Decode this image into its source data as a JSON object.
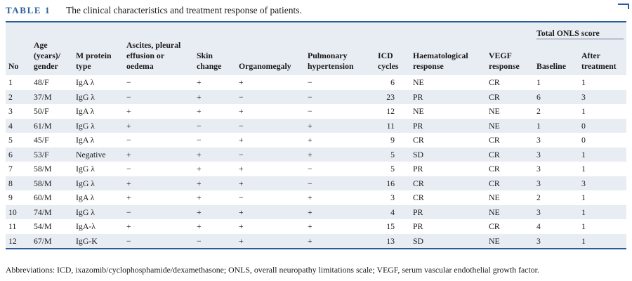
{
  "caption": {
    "label": "TABLE 1",
    "title": "The clinical characteristics and treatment response of patients."
  },
  "header": {
    "no": "No",
    "age_gender": "Age (years)/ gender",
    "m_protein": "M protein type",
    "ascites": "Ascites, pleural effusion or oedema",
    "skin": "Skin change",
    "organomegaly": "Organomegaly",
    "pulmonary": "Pulmonary hypertension",
    "icd": "ICD cycles",
    "haem": "Haematological response",
    "vegf": "VEGF response",
    "onls_group": "Total ONLS score",
    "baseline": "Baseline",
    "after": "After treatment"
  },
  "rows": [
    [
      "1",
      "48/F",
      "IgA λ",
      "−",
      "+",
      "+",
      "−",
      "6",
      "NE",
      "CR",
      "1",
      "1"
    ],
    [
      "2",
      "37/M",
      "IgG λ",
      "−",
      "+",
      "−",
      "−",
      "23",
      "PR",
      "CR",
      "6",
      "3"
    ],
    [
      "3",
      "50/F",
      "IgA λ",
      "+",
      "+",
      "+",
      "−",
      "12",
      "NE",
      "NE",
      "2",
      "1"
    ],
    [
      "4",
      "61/M",
      "IgG λ",
      "+",
      "−",
      "−",
      "+",
      "11",
      "PR",
      "NE",
      "1",
      "0"
    ],
    [
      "5",
      "45/F",
      "IgA λ",
      "−",
      "−",
      "+",
      "+",
      "9",
      "CR",
      "CR",
      "3",
      "0"
    ],
    [
      "6",
      "53/F",
      "Negative",
      "+",
      "+",
      "−",
      "+",
      "5",
      "SD",
      "CR",
      "3",
      "1"
    ],
    [
      "7",
      "58/M",
      "IgG λ",
      "−",
      "+",
      "+",
      "−",
      "5",
      "PR",
      "CR",
      "3",
      "1"
    ],
    [
      "8",
      "58/M",
      "IgG λ",
      "+",
      "+",
      "+",
      "−",
      "16",
      "CR",
      "CR",
      "3",
      "3"
    ],
    [
      "9",
      "60/M",
      "IgA λ",
      "+",
      "+",
      "−",
      "+",
      "3",
      "CR",
      "NE",
      "2",
      "1"
    ],
    [
      "10",
      "74/M",
      "IgG λ",
      "−",
      "+",
      "+",
      "+",
      "4",
      "PR",
      "NE",
      "3",
      "1"
    ],
    [
      "11",
      "54/M",
      "IgA-λ",
      "+",
      "+",
      "+",
      "+",
      "15",
      "PR",
      "CR",
      "4",
      "1"
    ],
    [
      "12",
      "67/M",
      "IgG-K",
      "−",
      "−",
      "+",
      "+",
      "13",
      "SD",
      "NE",
      "3",
      "1"
    ]
  ],
  "footnote": "Abbreviations: ICD, ixazomib/cyclophosphamide/dexamethasone; ONLS, overall neuropathy limitations scale; VEGF, serum vascular endothelial growth factor.",
  "colors": {
    "accent": "#2a5d99",
    "band": "#e8ecf3"
  }
}
